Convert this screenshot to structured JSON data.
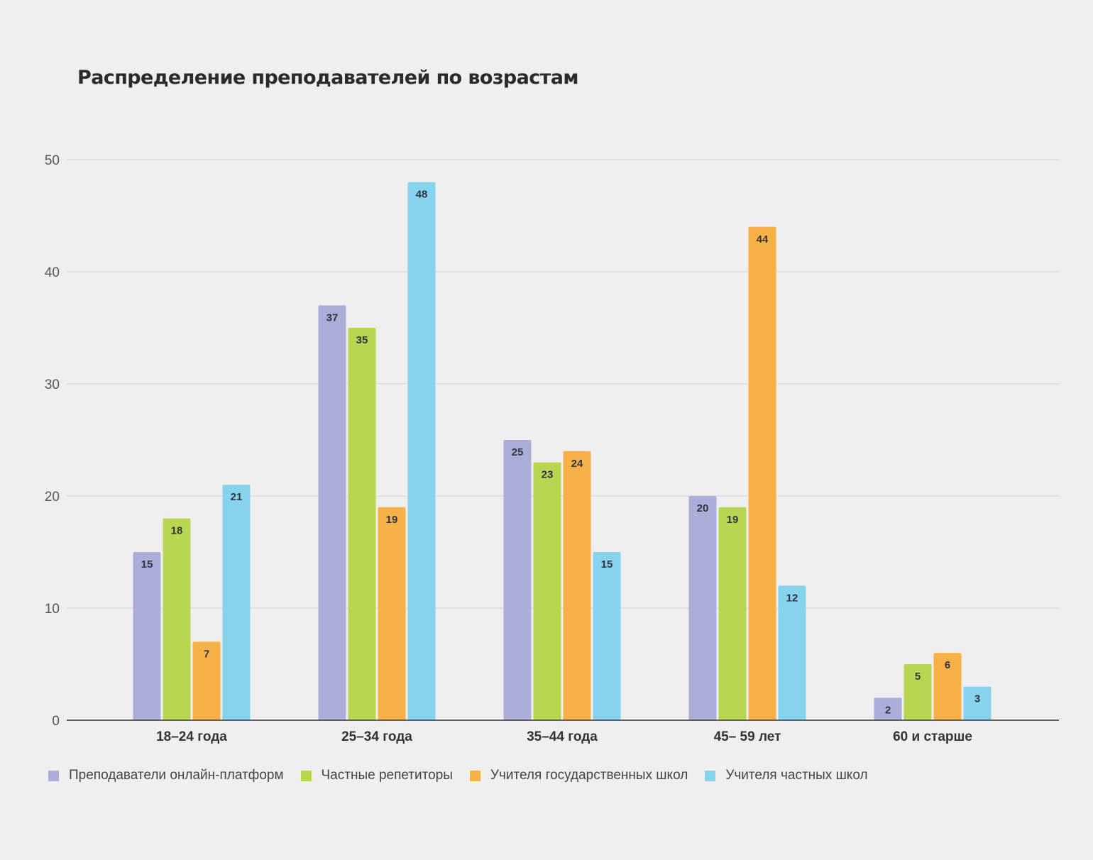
{
  "chart_data": {
    "type": "bar",
    "title": "Распределение преподавателей по возрастам",
    "xlabel": "",
    "ylabel": "",
    "ylim": [
      0,
      50
    ],
    "yticks": [
      0,
      10,
      20,
      30,
      40,
      50
    ],
    "grid": true,
    "legend_position": "bottom-left",
    "categories": [
      "18–24 года",
      "25–34 года",
      "35–44 года",
      "45– 59 лет",
      "60 и старше"
    ],
    "series": [
      {
        "name": "Преподаватели онлайн-платформ",
        "color": "#adadd9",
        "values": [
          15,
          37,
          25,
          20,
          2
        ]
      },
      {
        "name": "Частные репетиторы",
        "color": "#b9d650",
        "values": [
          18,
          35,
          23,
          19,
          5
        ]
      },
      {
        "name": "Учителя государственных школ",
        "color": "#f7b146",
        "values": [
          7,
          19,
          24,
          44,
          6
        ]
      },
      {
        "name": "Учителя частных школ",
        "color": "#86d3ee",
        "values": [
          21,
          48,
          15,
          12,
          3
        ]
      }
    ]
  }
}
